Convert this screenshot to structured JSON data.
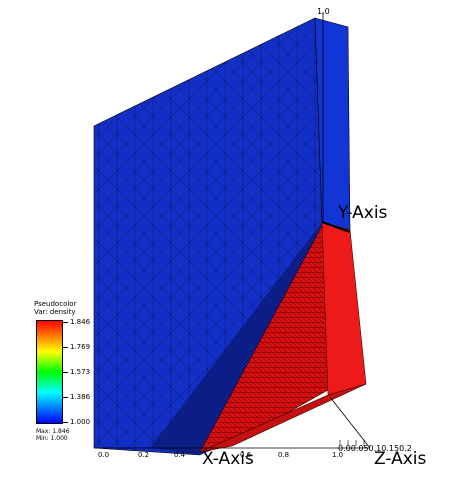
{
  "legend": {
    "title_line1": "Pseudocolor",
    "title_line2": "Var: density",
    "ticks": [
      "1.846",
      "1.769",
      "1.573",
      "1.386",
      "1.000"
    ],
    "max_label": "Max: 1.846",
    "min_label": "Min: 1.000",
    "colors": [
      "#ff0000",
      "#ffff00",
      "#00ff00",
      "#00ffff",
      "#0000ff"
    ]
  },
  "axes": {
    "x_label": "X-Axis",
    "y_label": "Y-Axis",
    "z_label": "Z-Axis",
    "x_ticks": [
      "0.0",
      "0.2",
      "0.4",
      "0.6",
      "0.8",
      "1.0"
    ],
    "y_top_tick": "1.0",
    "z_ticks": "0.00.050.10.150.2"
  },
  "colors": {
    "low_density": "#1030d0",
    "high_density": "#e01010"
  }
}
